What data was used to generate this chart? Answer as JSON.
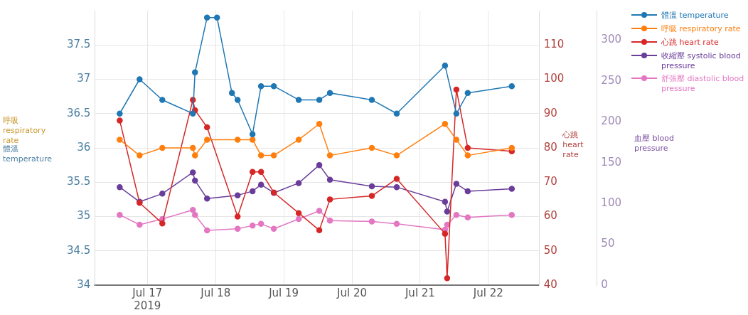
{
  "chart_data": {
    "type": "line",
    "ylabel": "體溫 temperature",
    "y2label": "心跳 heart rate",
    "y3label": "血壓 blood pressure",
    "annotations": [
      "呼吸 respiratory rate"
    ],
    "xlim": [
      "2019-07-16T05:30",
      "2019-07-22T18:00"
    ],
    "xticks": [
      {
        "value": "2019-07-17",
        "label": "Jul 17\n2019"
      },
      {
        "value": "2019-07-18",
        "label": "Jul 18"
      },
      {
        "value": "2019-07-19",
        "label": "Jul 19"
      },
      {
        "value": "2019-07-20",
        "label": "Jul 20"
      },
      {
        "value": "2019-07-21",
        "label": "Jul 21"
      },
      {
        "value": "2019-07-22",
        "label": "Jul 22"
      }
    ],
    "ylim": [
      34,
      38
    ],
    "yticks": [
      34,
      34.5,
      35,
      35.5,
      36,
      36.5,
      37,
      37.5
    ],
    "y2lim": [
      40,
      120
    ],
    "y2ticks": [
      40,
      50,
      60,
      70,
      80,
      90,
      100,
      110
    ],
    "y3lim": [
      0,
      336
    ],
    "y3ticks": [
      0,
      50,
      100,
      150,
      200,
      250,
      300
    ],
    "grid": true,
    "legend": "right",
    "marker": "circle",
    "series": [
      {
        "name": "體溫 temperature",
        "color": "#1f77b4",
        "x": [
          "2019-07-16T14:15",
          "2019-07-16T21:15",
          "2019-07-17T05:15",
          "2019-07-17T16:00",
          "2019-07-17T16:45",
          "2019-07-17T21:00",
          "2019-07-18T00:30",
          "2019-07-18T05:45",
          "2019-07-18T07:45",
          "2019-07-18T13:00",
          "2019-07-18T16:00",
          "2019-07-18T20:30",
          "2019-07-19T05:15",
          "2019-07-19T12:30",
          "2019-07-19T16:15",
          "2019-07-20T07:00",
          "2019-07-20T15:45",
          "2019-07-21T08:45",
          "2019-07-21T12:45",
          "2019-07-21T16:45",
          "2019-07-22T08:15"
        ],
        "values": [
          36.5,
          37,
          36.7,
          36.5,
          37.1,
          37.9,
          37.9,
          36.8,
          36.7,
          36.2,
          36.9,
          36.9,
          36.7,
          36.7,
          36.8,
          36.7,
          36.5,
          37.2,
          36.5,
          36.8,
          36.9
        ]
      },
      {
        "name": "呼吸 respiratory rate",
        "color": "#ff7f0e",
        "x": [
          "2019-07-16T14:15",
          "2019-07-16T21:15",
          "2019-07-17T05:15",
          "2019-07-17T16:00",
          "2019-07-17T16:45",
          "2019-07-17T21:00",
          "2019-07-18T07:45",
          "2019-07-18T13:00",
          "2019-07-18T16:00",
          "2019-07-18T20:30",
          "2019-07-19T05:15",
          "2019-07-19T12:30",
          "2019-07-19T16:15",
          "2019-07-20T07:00",
          "2019-07-20T15:45",
          "2019-07-21T08:45",
          "2019-07-21T12:45",
          "2019-07-21T16:45",
          "2019-07-22T08:15"
        ],
        "values": [
          36.12,
          35.89,
          36,
          36,
          35.89,
          36.12,
          36.12,
          36.12,
          35.89,
          35.89,
          36.12,
          36.35,
          35.89,
          36,
          35.89,
          36.35,
          36.12,
          35.89,
          36
        ]
      },
      {
        "name": "心跳 heart rate",
        "color": "#d62728",
        "axis": "y2",
        "x": [
          "2019-07-16T14:15",
          "2019-07-16T21:15",
          "2019-07-17T05:15",
          "2019-07-17T16:00",
          "2019-07-17T16:45",
          "2019-07-17T21:00",
          "2019-07-18T07:45",
          "2019-07-18T13:00",
          "2019-07-18T16:00",
          "2019-07-18T20:30",
          "2019-07-19T05:15",
          "2019-07-19T12:30",
          "2019-07-19T16:15",
          "2019-07-20T07:00",
          "2019-07-20T15:45",
          "2019-07-21T08:45",
          "2019-07-21T09:30",
          "2019-07-21T12:45",
          "2019-07-21T16:45",
          "2019-07-22T08:15"
        ],
        "values": [
          88,
          64,
          58,
          94,
          91,
          86,
          60,
          73,
          73,
          67,
          61,
          56,
          65,
          66,
          71,
          55,
          42,
          97,
          80,
          79
        ]
      },
      {
        "name": "收縮壓 systolic blood pressure",
        "color": "#6a3d9a",
        "axis": "y3",
        "x": [
          "2019-07-16T14:15",
          "2019-07-16T21:15",
          "2019-07-17T05:15",
          "2019-07-17T16:00",
          "2019-07-17T16:45",
          "2019-07-17T21:00",
          "2019-07-18T07:45",
          "2019-07-18T13:00",
          "2019-07-18T16:00",
          "2019-07-18T20:30",
          "2019-07-19T05:15",
          "2019-07-19T12:30",
          "2019-07-19T16:15",
          "2019-07-20T07:00",
          "2019-07-20T15:45",
          "2019-07-21T08:45",
          "2019-07-21T09:30",
          "2019-07-21T12:45",
          "2019-07-21T16:45",
          "2019-07-22T08:15"
        ],
        "values": [
          120,
          102,
          112,
          138,
          128,
          106,
          110,
          115,
          123,
          113,
          125,
          147,
          129,
          121,
          120,
          102,
          90,
          124,
          115,
          118
        ]
      },
      {
        "name": "舒張壓 diastolic blood pressure",
        "color": "#e377c2",
        "axis": "y3",
        "x": [
          "2019-07-16T14:15",
          "2019-07-16T21:15",
          "2019-07-17T05:15",
          "2019-07-17T16:00",
          "2019-07-17T16:45",
          "2019-07-17T21:00",
          "2019-07-18T07:45",
          "2019-07-18T13:00",
          "2019-07-18T16:00",
          "2019-07-18T20:30",
          "2019-07-19T05:15",
          "2019-07-19T12:30",
          "2019-07-19T16:15",
          "2019-07-20T07:00",
          "2019-07-20T15:45",
          "2019-07-21T08:45",
          "2019-07-21T09:30",
          "2019-07-21T12:45",
          "2019-07-21T16:45",
          "2019-07-22T08:15"
        ],
        "values": [
          86,
          74,
          81,
          92,
          86,
          67,
          69,
          73,
          75,
          69,
          81,
          91,
          79,
          78,
          75,
          68,
          74,
          86,
          83,
          86
        ]
      }
    ]
  }
}
